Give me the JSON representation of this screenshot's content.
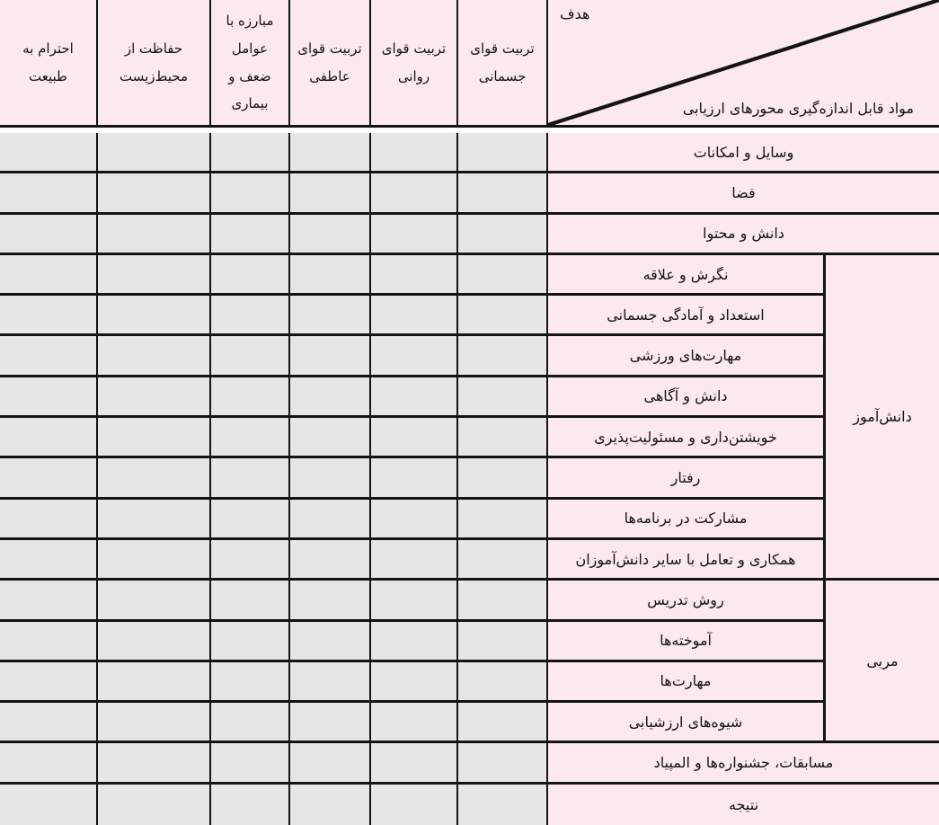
{
  "table": {
    "corner": {
      "top_label": "هدف",
      "bottom_label": "مواد قابل اندازه‌گیری محورهای ارزیابی"
    },
    "goals": [
      "تربیت قوای جسمانی",
      "تربیت قوای روانی",
      "تربیت قوای عاطفی",
      "مبارزه با عوامل ضعف و بیماری",
      "حفاظت از محیط‌زیست",
      "احترام به طبیعت"
    ],
    "row_groups": [
      {
        "group_label": null,
        "rows": [
          "وسایل و امکانات",
          "فضا",
          "دانش و محتوا"
        ]
      },
      {
        "group_label": "دانش‌آموز",
        "rows": [
          "نگرش و علاقه",
          "استعداد و آمادگی جسمانی",
          "مهارت‌های ورزشی",
          "دانش و آگاهی",
          "خویشتن‌داری و مسئولیت‌پذیری",
          "رفتار",
          "مشارکت در برنامه‌ها",
          "همکاری و تعامل با سایر دانش‌آموزان"
        ]
      },
      {
        "group_label": "مربی",
        "rows": [
          "روش تدریس",
          "آموخته‌ها",
          "مهارت‌ها",
          "شیوه‌های ارزشیابی"
        ]
      },
      {
        "group_label": null,
        "rows": [
          "مسابقات، جشنواره‌ها و المپیاد",
          "نتیجه"
        ]
      }
    ],
    "cell_values_note": "",
    "colors": {
      "header_bg": "#fcE9EF",
      "cell_bg": "#e6e6e6",
      "border": "#141414",
      "gap": "#ffffff"
    }
  }
}
